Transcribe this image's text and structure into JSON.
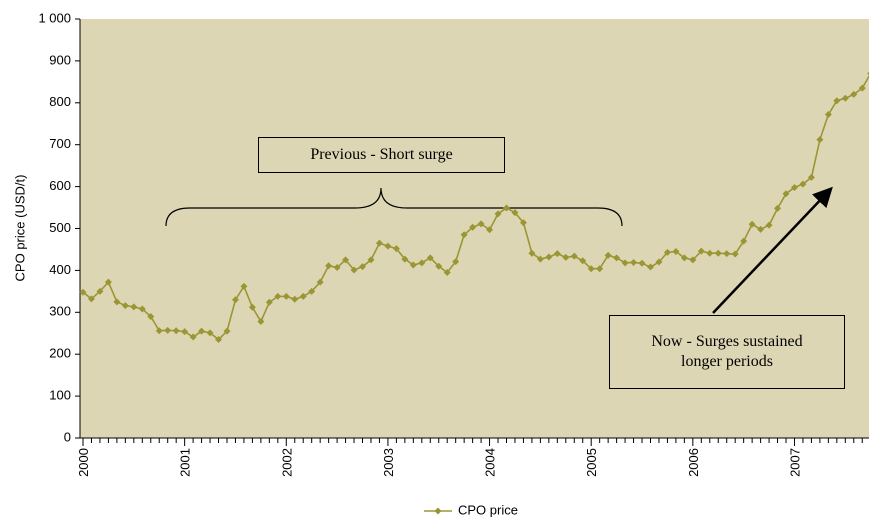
{
  "chart_data": {
    "type": "line",
    "y_label": "CPO price (USD/t)",
    "categories": [
      "2000",
      null,
      null,
      null,
      null,
      null,
      null,
      null,
      null,
      null,
      null,
      null,
      "2001",
      null,
      null,
      null,
      null,
      null,
      null,
      null,
      null,
      null,
      null,
      null,
      "2002",
      null,
      null,
      null,
      null,
      null,
      null,
      null,
      null,
      null,
      null,
      null,
      "2003",
      null,
      null,
      null,
      null,
      null,
      null,
      null,
      null,
      null,
      null,
      null,
      "2004",
      null,
      null,
      null,
      null,
      null,
      null,
      null,
      null,
      null,
      null,
      null,
      "2005",
      null,
      null,
      null,
      null,
      null,
      null,
      null,
      null,
      null,
      null,
      null,
      "2006",
      null,
      null,
      null,
      null,
      null,
      null,
      null,
      null,
      null,
      null,
      null,
      "2007",
      null,
      null,
      null,
      null,
      null,
      null,
      null,
      null,
      null
    ],
    "series": [
      {
        "name": "CPO price",
        "color": "#9b9634",
        "values": [
          348,
          332,
          350,
          372,
          325,
          316,
          313,
          308,
          290,
          256,
          257,
          256,
          254,
          241,
          255,
          251,
          235,
          255,
          330,
          362,
          312,
          278,
          324,
          338,
          338,
          331,
          338,
          350,
          372,
          411,
          407,
          425,
          401,
          409,
          425,
          465,
          458,
          452,
          427,
          413,
          418,
          430,
          410,
          395,
          421,
          485,
          503,
          511,
          497,
          535,
          549,
          538,
          514,
          441,
          427,
          432,
          440,
          431,
          434,
          423,
          404,
          404,
          436,
          430,
          418,
          419,
          417,
          408,
          420,
          443,
          445,
          430,
          425,
          446,
          441,
          441,
          440,
          439,
          470,
          510,
          498,
          508,
          548,
          583,
          598,
          606,
          622,
          712,
          772,
          805,
          811,
          820,
          835,
          870
        ]
      }
    ],
    "ylim": [
      0,
      1000
    ],
    "yticks": [
      0,
      100,
      200,
      300,
      400,
      500,
      600,
      700,
      800,
      900,
      {
        "value": 1000,
        "label": "1 000"
      }
    ],
    "annotations": [
      "Previous -  Short surge",
      "Now - Surges sustained longer periods"
    ],
    "grid": false
  }
}
